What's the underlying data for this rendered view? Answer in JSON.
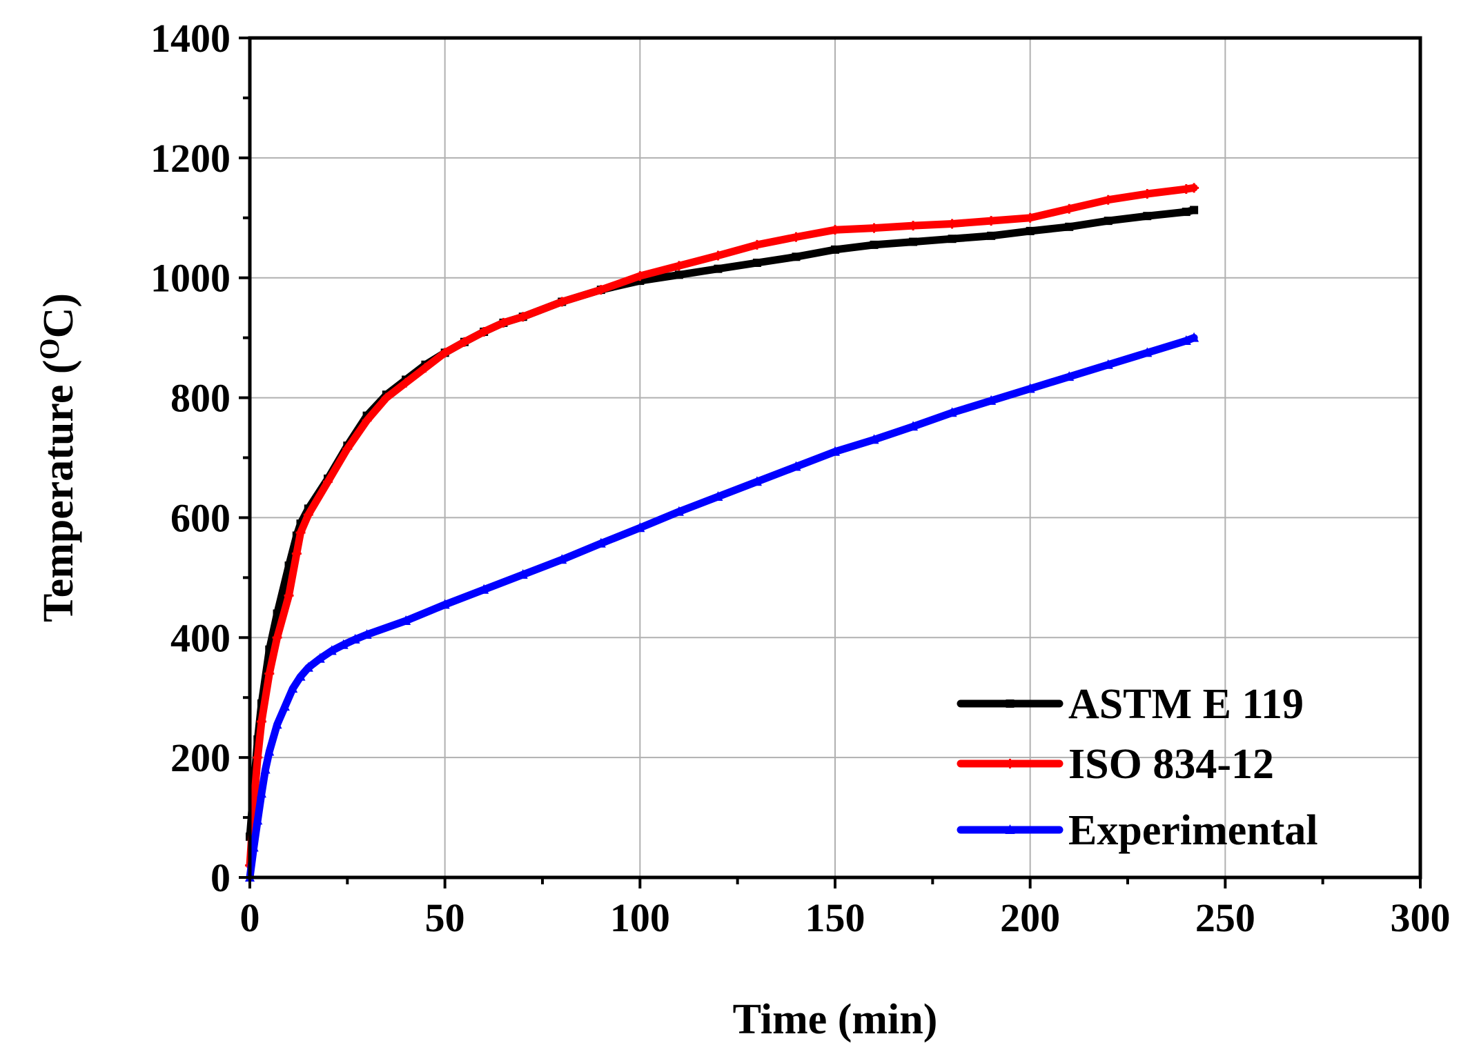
{
  "chart_data": {
    "type": "line",
    "title": "",
    "xlabel": "Time (min)",
    "ylabel_main": "Temperature (",
    "ylabel_sup": "O",
    "ylabel_unit": "C)",
    "xlim": [
      0,
      300
    ],
    "ylim": [
      0,
      1400
    ],
    "xticks": [
      0,
      50,
      100,
      150,
      200,
      250,
      300
    ],
    "yticks": [
      0,
      200,
      400,
      600,
      800,
      1000,
      1200,
      1400
    ],
    "xtick_labels": [
      "0",
      "50",
      "100",
      "150",
      "200",
      "250",
      "300"
    ],
    "ytick_labels": [
      "0",
      "200",
      "400",
      "600",
      "800",
      "1000",
      "1200",
      "1400"
    ],
    "grid": true,
    "legend_position": "bottom-right",
    "series": [
      {
        "name": "ASTM E 119",
        "color": "#000000",
        "marker": "square",
        "x": [
          0,
          1,
          2,
          3,
          5,
          7,
          10,
          12,
          13,
          15,
          20,
          25,
          30,
          35,
          40,
          45,
          50,
          55,
          60,
          65,
          70,
          80,
          90,
          100,
          110,
          120,
          130,
          140,
          150,
          160,
          170,
          180,
          190,
          200,
          210,
          220,
          230,
          240,
          242
        ],
        "y": [
          68,
          150,
          230,
          290,
          380,
          440,
          520,
          570,
          590,
          615,
          665,
          720,
          770,
          805,
          830,
          855,
          875,
          893,
          910,
          925,
          935,
          960,
          980,
          995,
          1005,
          1015,
          1025,
          1035,
          1047,
          1055,
          1060,
          1065,
          1070,
          1078,
          1085,
          1095,
          1103,
          1110,
          1113
        ]
      },
      {
        "name": "ISO 834-12",
        "color": "#ff0000",
        "marker": "plus",
        "x": [
          0,
          1,
          2,
          3,
          5,
          7,
          10,
          12,
          13,
          15,
          20,
          25,
          30,
          35,
          40,
          45,
          50,
          55,
          60,
          65,
          70,
          80,
          90,
          100,
          110,
          120,
          130,
          140,
          150,
          160,
          170,
          180,
          190,
          200,
          210,
          220,
          230,
          240,
          242
        ],
        "y": [
          20,
          120,
          200,
          260,
          340,
          400,
          470,
          540,
          575,
          605,
          660,
          715,
          762,
          800,
          825,
          850,
          875,
          893,
          910,
          925,
          935,
          960,
          980,
          1003,
          1020,
          1037,
          1055,
          1068,
          1080,
          1083,
          1087,
          1090,
          1095,
          1100,
          1115,
          1130,
          1140,
          1148,
          1150
        ]
      },
      {
        "name": "Experimental",
        "color": "#0000ff",
        "marker": "triangle",
        "x": [
          0,
          1,
          2,
          3,
          4,
          5,
          7,
          9,
          11,
          13,
          15,
          18,
          21,
          24,
          27,
          30,
          40,
          50,
          60,
          70,
          80,
          90,
          100,
          110,
          120,
          130,
          140,
          150,
          160,
          170,
          180,
          190,
          200,
          210,
          220,
          230,
          240,
          242
        ],
        "y": [
          0,
          50,
          95,
          140,
          180,
          210,
          255,
          285,
          315,
          335,
          350,
          365,
          378,
          388,
          397,
          405,
          428,
          455,
          480,
          505,
          530,
          557,
          583,
          610,
          635,
          660,
          685,
          710,
          730,
          752,
          775,
          795,
          815,
          835,
          855,
          875,
          895,
          900
        ]
      }
    ]
  }
}
